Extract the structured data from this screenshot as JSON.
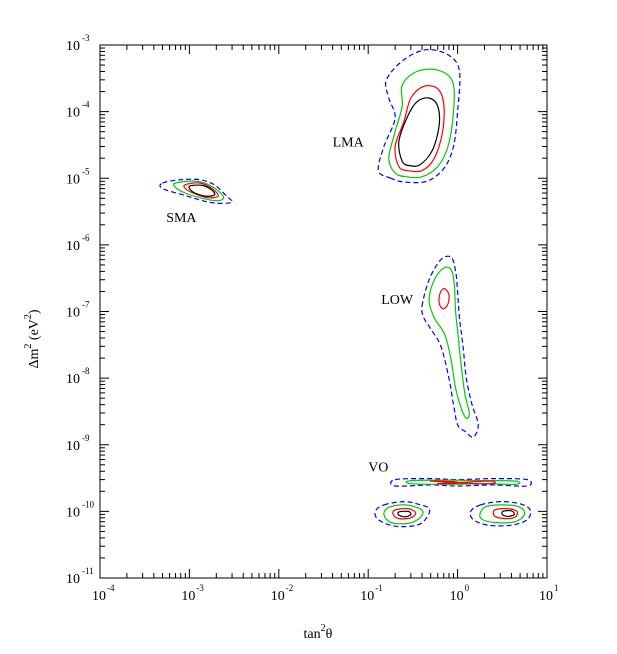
{
  "chart_data": {
    "type": "contour",
    "xlabel": {
      "base": "tan",
      "sup": "2",
      "after": "θ"
    },
    "ylabel": {
      "base": "Δm",
      "sup1": "2",
      "mid": " (eV",
      "sup2": "2",
      "after": ")"
    },
    "xscale": "log",
    "yscale": "log",
    "xlim": [
      0.0001,
      10
    ],
    "ylim": [
      1e-11,
      0.001
    ],
    "x_ticks": [
      {
        "value": 0.0001,
        "base": "10",
        "exp": "-4"
      },
      {
        "value": 0.001,
        "base": "10",
        "exp": "-3"
      },
      {
        "value": 0.01,
        "base": "10",
        "exp": "-2"
      },
      {
        "value": 0.1,
        "base": "10",
        "exp": "-1"
      },
      {
        "value": 1,
        "base": "10",
        "exp": "0"
      },
      {
        "value": 10,
        "base": "10",
        "exp": "1"
      }
    ],
    "y_ticks": [
      {
        "value": 1e-11,
        "base": "10",
        "exp": "-11"
      },
      {
        "value": 1e-10,
        "base": "10",
        "exp": "-10"
      },
      {
        "value": 1e-09,
        "base": "10",
        "exp": "-9"
      },
      {
        "value": 1e-08,
        "base": "10",
        "exp": "-8"
      },
      {
        "value": 1e-07,
        "base": "10",
        "exp": "-7"
      },
      {
        "value": 1e-06,
        "base": "10",
        "exp": "-6"
      },
      {
        "value": 1e-05,
        "base": "10",
        "exp": "-5"
      },
      {
        "value": 0.0001,
        "base": "10",
        "exp": "-4"
      },
      {
        "value": 0.001,
        "base": "10",
        "exp": "-3"
      }
    ],
    "contour_levels": [
      {
        "level": "black",
        "color": "#000000",
        "dash": "none"
      },
      {
        "level": "red",
        "color": "#ff0000",
        "dash": "none"
      },
      {
        "level": "green",
        "color": "#00cc00",
        "dash": "none"
      },
      {
        "level": "blue",
        "color": "#0000ff",
        "dash": "dashed"
      }
    ],
    "regions": [
      {
        "name": "LMA",
        "label_at": [
          0.04,
          3e-05
        ],
        "contours": {
          "blue": [
            [
              0.18,
              1e-05
            ],
            [
              0.13,
              1.3e-05
            ],
            [
              0.15,
              3e-05
            ],
            [
              0.2,
              8e-05
            ],
            [
              0.17,
              0.00016
            ],
            [
              0.16,
              0.0003
            ],
            [
              0.25,
              0.0006
            ],
            [
              0.45,
              0.00085
            ],
            [
              0.8,
              0.0007
            ],
            [
              1.05,
              0.0004
            ],
            [
              1.0,
              0.0001
            ],
            [
              0.9,
              3e-05
            ],
            [
              0.7,
              1.4e-05
            ],
            [
              0.45,
              9e-06
            ],
            [
              0.25,
              8.8e-06
            ]
          ],
          "green": [
            [
              0.2,
              1.2e-05
            ],
            [
              0.17,
              2e-05
            ],
            [
              0.2,
              5e-05
            ],
            [
              0.24,
              0.00012
            ],
            [
              0.24,
              0.00025
            ],
            [
              0.35,
              0.0004
            ],
            [
              0.6,
              0.00042
            ],
            [
              0.88,
              0.00028
            ],
            [
              0.9,
              0.0001
            ],
            [
              0.78,
              3e-05
            ],
            [
              0.6,
              1.5e-05
            ],
            [
              0.4,
              1.05e-05
            ],
            [
              0.27,
              1.05e-05
            ]
          ],
          "red": [
            [
              0.22,
              1.5e-05
            ],
            [
              0.2,
              3e-05
            ],
            [
              0.25,
              7e-05
            ],
            [
              0.3,
              0.00016
            ],
            [
              0.42,
              0.00024
            ],
            [
              0.6,
              0.00022
            ],
            [
              0.7,
              0.00013
            ],
            [
              0.68,
              5e-05
            ],
            [
              0.55,
              2e-05
            ],
            [
              0.4,
              1.3e-05
            ],
            [
              0.28,
              1.3e-05
            ]
          ],
          "black": [
            [
              0.24,
              1.8e-05
            ],
            [
              0.22,
              3.5e-05
            ],
            [
              0.27,
              8e-05
            ],
            [
              0.35,
              0.00014
            ],
            [
              0.48,
              0.00016
            ],
            [
              0.6,
              0.00012
            ],
            [
              0.62,
              6e-05
            ],
            [
              0.52,
              2.6e-05
            ],
            [
              0.38,
              1.6e-05
            ],
            [
              0.29,
              1.55e-05
            ]
          ]
        }
      },
      {
        "name": "SMA",
        "label_at": [
          0.00055,
          2.2e-06
        ],
        "contours": {
          "blue": [
            [
              0.0005,
              8.5e-06
            ],
            [
              0.0008,
              9.5e-06
            ],
            [
              0.0013,
              9.5e-06
            ],
            [
              0.0019,
              8e-06
            ],
            [
              0.0026,
              5.4e-06
            ],
            [
              0.003,
              4.4e-06
            ],
            [
              0.0022,
              4.2e-06
            ],
            [
              0.0015,
              4.5e-06
            ],
            [
              0.0009,
              5.5e-06
            ],
            [
              0.0005,
              7e-06
            ]
          ],
          "green": [
            [
              0.0007,
              8.5e-06
            ],
            [
              0.0012,
              9e-06
            ],
            [
              0.0018,
              7.5e-06
            ],
            [
              0.0024,
              5.3e-06
            ],
            [
              0.0021,
              4.6e-06
            ],
            [
              0.0014,
              5e-06
            ],
            [
              0.0009,
              6e-06
            ],
            [
              0.0007,
              7.3e-06
            ]
          ],
          "red": [
            [
              0.0009,
              8e-06
            ],
            [
              0.0013,
              8.5e-06
            ],
            [
              0.0018,
              7e-06
            ],
            [
              0.0021,
              5.4e-06
            ],
            [
              0.0016,
              5.1e-06
            ],
            [
              0.0011,
              6e-06
            ],
            [
              0.0009,
              7e-06
            ]
          ],
          "black": [
            [
              0.001,
              7.6e-06
            ],
            [
              0.0014,
              7.8e-06
            ],
            [
              0.0018,
              6.6e-06
            ],
            [
              0.0019,
              5.6e-06
            ],
            [
              0.0015,
              5.4e-06
            ],
            [
              0.0011,
              6.2e-06
            ]
          ]
        }
      },
      {
        "name": "LOW",
        "label_at": [
          0.14,
          1.3e-07
        ],
        "contours": {
          "blue": [
            [
              0.4,
              1.2e-07
            ],
            [
              0.48,
              3e-07
            ],
            [
              0.65,
              6e-07
            ],
            [
              0.85,
              6.5e-07
            ],
            [
              0.95,
              4e-07
            ],
            [
              1.0,
              2e-07
            ],
            [
              1.05,
              8e-08
            ],
            [
              1.15,
              3e-08
            ],
            [
              1.25,
              1e-08
            ],
            [
              1.45,
              4e-09
            ],
            [
              1.7,
              2e-09
            ],
            [
              1.5,
              1.3e-09
            ],
            [
              1.2,
              1.6e-09
            ],
            [
              1.0,
              2e-09
            ],
            [
              0.9,
              4e-09
            ],
            [
              0.8,
              1e-08
            ],
            [
              0.65,
              3e-08
            ],
            [
              0.5,
              5.5e-08
            ],
            [
              0.42,
              8e-08
            ]
          ],
          "green": [
            [
              0.48,
              1.5e-07
            ],
            [
              0.55,
              3e-07
            ],
            [
              0.7,
              4.5e-07
            ],
            [
              0.85,
              4.2e-07
            ],
            [
              0.92,
              2.5e-07
            ],
            [
              0.95,
              1e-07
            ],
            [
              1.02,
              4e-08
            ],
            [
              1.1,
              1.5e-08
            ],
            [
              1.2,
              6e-09
            ],
            [
              1.35,
              3e-09
            ],
            [
              1.25,
              2.5e-09
            ],
            [
              1.1,
              3.5e-09
            ],
            [
              0.95,
              7e-09
            ],
            [
              0.85,
              1.8e-08
            ],
            [
              0.72,
              4.5e-08
            ],
            [
              0.55,
              8e-08
            ]
          ],
          "red": [
            [
              0.62,
              1.5e-07
            ],
            [
              0.65,
              2e-07
            ],
            [
              0.72,
              2.2e-07
            ],
            [
              0.8,
              1.8e-07
            ],
            [
              0.78,
              1.3e-07
            ],
            [
              0.7,
              1.1e-07
            ],
            [
              0.64,
              1.2e-07
            ]
          ],
          "black": []
        }
      },
      {
        "name": "VO",
        "label_at": [
          0.1,
          4e-10
        ],
        "contours": {
          "blue": [
            [
              0.2,
              3e-10
            ],
            [
              0.5,
              3.1e-10
            ],
            [
              1.0,
              3e-10
            ],
            [
              2.5,
              3.1e-10
            ],
            [
              6.0,
              3e-10
            ],
            [
              6.0,
              2.4e-10
            ],
            [
              2.5,
              2.5e-10
            ],
            [
              1.0,
              2.4e-10
            ],
            [
              0.5,
              2.5e-10
            ],
            [
              0.2,
              2.4e-10
            ]
          ],
          "green": [
            [
              0.3,
              2.9e-10
            ],
            [
              0.8,
              2.95e-10
            ],
            [
              2.0,
              2.9e-10
            ],
            [
              4.5,
              2.85e-10
            ],
            [
              4.5,
              2.55e-10
            ],
            [
              2.0,
              2.6e-10
            ],
            [
              0.8,
              2.55e-10
            ],
            [
              0.3,
              2.6e-10
            ]
          ],
          "red": [
            [
              0.5,
              2.85e-10
            ],
            [
              0.9,
              2.8e-10
            ],
            [
              1.0,
              2.65e-10
            ],
            [
              0.6,
              2.6e-10
            ],
            [
              1.6,
              2.8e-10
            ],
            [
              2.4,
              2.85e-10
            ],
            [
              2.6,
              2.65e-10
            ],
            [
              1.8,
              2.6e-10
            ]
          ],
          "black": []
        }
      },
      {
        "name": "VO-lower-left",
        "label_at": null,
        "contours": {
          "blue": [
            [
              0.15,
              1.25e-10
            ],
            [
              0.25,
              1.4e-10
            ],
            [
              0.35,
              1.3e-10
            ],
            [
              0.48,
              1.1e-10
            ],
            [
              0.45,
              8e-11
            ],
            [
              0.35,
              6.2e-11
            ],
            [
              0.2,
              6e-11
            ],
            [
              0.13,
              7.5e-11
            ],
            [
              0.12,
              1e-10
            ]
          ],
          "green": [
            [
              0.17,
              1.15e-10
            ],
            [
              0.26,
              1.25e-10
            ],
            [
              0.4,
              1.05e-10
            ],
            [
              0.38,
              8e-11
            ],
            [
              0.28,
              6.6e-11
            ],
            [
              0.18,
              6.8e-11
            ],
            [
              0.15,
              9e-11
            ]
          ],
          "red": [
            [
              0.2,
              1.05e-10
            ],
            [
              0.28,
              1.1e-10
            ],
            [
              0.34,
              9.5e-11
            ],
            [
              0.3,
              8e-11
            ],
            [
              0.22,
              7.8e-11
            ],
            [
              0.19,
              9e-11
            ]
          ],
          "black": [
            [
              0.22,
              9.8e-11
            ],
            [
              0.28,
              1e-10
            ],
            [
              0.3,
              9e-11
            ],
            [
              0.26,
              8.3e-11
            ],
            [
              0.22,
              8.8e-11
            ]
          ]
        }
      },
      {
        "name": "VO-lower-right",
        "label_at": null,
        "contours": {
          "blue": [
            [
              1.8,
              1.25e-10
            ],
            [
              3.0,
              1.4e-10
            ],
            [
              5.0,
              1.3e-10
            ],
            [
              6.5,
              1.05e-10
            ],
            [
              6.0,
              7.5e-11
            ],
            [
              4.0,
              6.2e-11
            ],
            [
              2.2,
              6.2e-11
            ],
            [
              1.5,
              7.5e-11
            ],
            [
              1.4,
              1e-10
            ]
          ],
          "green": [
            [
              2.0,
              1.15e-10
            ],
            [
              3.2,
              1.25e-10
            ],
            [
              5.0,
              1.15e-10
            ],
            [
              5.6,
              9e-11
            ],
            [
              4.4,
              7e-11
            ],
            [
              2.6,
              6.8e-11
            ],
            [
              1.8,
              8e-11
            ]
          ],
          "red": [
            [
              2.6,
              1.05e-10
            ],
            [
              3.6,
              1.1e-10
            ],
            [
              4.6,
              1e-10
            ],
            [
              4.4,
              8.2e-11
            ],
            [
              3.4,
              7.8e-11
            ],
            [
              2.6,
              8.5e-11
            ]
          ],
          "black": [
            [
              3.2,
              1e-10
            ],
            [
              4.0,
              1.02e-10
            ],
            [
              4.3,
              9e-11
            ],
            [
              3.7,
              8.4e-11
            ],
            [
              3.2,
              8.8e-11
            ]
          ]
        }
      }
    ]
  }
}
